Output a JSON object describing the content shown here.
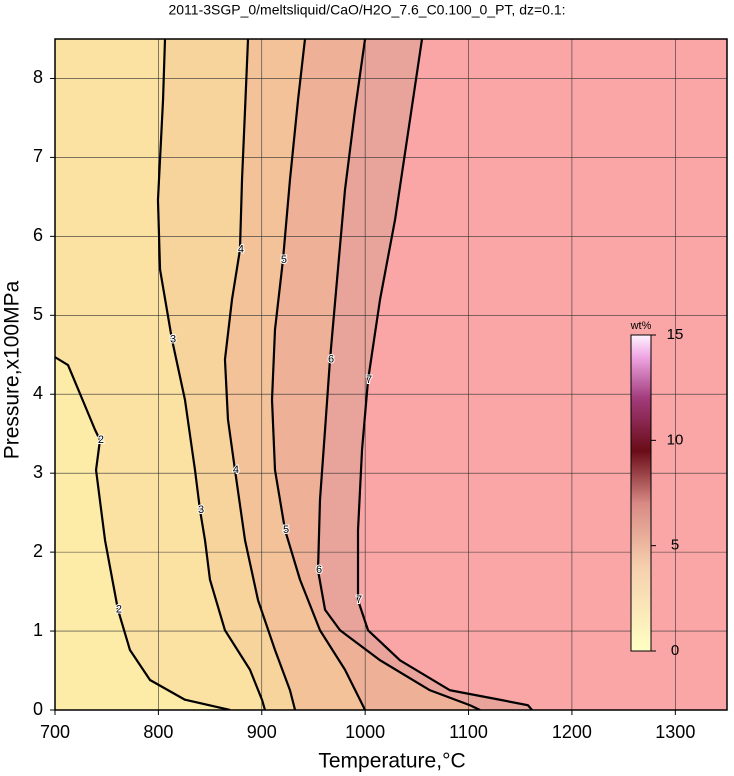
{
  "chart_data": {
    "type": "contour",
    "title": "2011-3SGP_0/meltsliquid/CaO/H2O_7.6_C0.100_0_PT, dz=0.1:",
    "x_label": "Temperature,°C",
    "y_label": "Pressure,x100MPa",
    "xlim": [
      700,
      1350
    ],
    "ylim": [
      0,
      8.5
    ],
    "xticks": [
      700,
      800,
      900,
      1000,
      1100,
      1200,
      1300
    ],
    "yticks": [
      0,
      1,
      2,
      3,
      4,
      5,
      6,
      7,
      8
    ],
    "grid": true,
    "contours": [
      {
        "level": 2,
        "x": [
          700,
          712.6,
          738.7,
          743.5,
          739.7,
          748.4,
          760.9,
          772.5,
          791.9,
          825.7,
          869.3
        ],
        "y": [
          4.47,
          4.37,
          3.55,
          3.42,
          3.04,
          2.15,
          1.27,
          0.76,
          0.38,
          0.13,
          0
        ],
        "fill": "#fdeba8"
      },
      {
        "level": 3,
        "x": [
          806.4,
          804.5,
          799.6,
          801.6,
          813.2,
          825.7,
          835.4,
          840.3,
          845.1,
          849.9,
          864.4,
          888.6,
          900.2,
          903.1
        ],
        "y": [
          8.5,
          7.73,
          6.46,
          5.58,
          4.69,
          3.93,
          3.04,
          2.53,
          2.15,
          1.65,
          1.01,
          0.51,
          0.13,
          0
        ],
        "fill": "#fbe2a3"
      },
      {
        "level": 4,
        "x": [
          886.7,
          883.8,
          880.9,
          878.9,
          871.2,
          864.4,
          867.3,
          874.1,
          883.8,
          896.4,
          912.8,
          927.3,
          932.2
        ],
        "y": [
          8.5,
          7.6,
          6.72,
          5.83,
          5.2,
          4.44,
          3.68,
          3.04,
          2.15,
          1.39,
          0.76,
          0.25,
          0
        ],
        "fill": "#f8d49d"
      },
      {
        "level": 5,
        "x": [
          941.8,
          935.1,
          927.3,
          920.5,
          912.8,
          909.9,
          912.8,
          922.5,
          937.0,
          956.3,
          980.5,
          995.0,
          999.9
        ],
        "y": [
          8.5,
          7.73,
          6.72,
          5.7,
          4.82,
          3.93,
          3.04,
          2.28,
          1.65,
          1.01,
          0.51,
          0.13,
          0
        ],
        "fill": "#f3c298"
      },
      {
        "level": 6,
        "x": [
          999.9,
          990.2,
          980.5,
          972.8,
          966.0,
          961.2,
          956.3,
          954.4,
          961.2,
          975.7,
          1014.4,
          1062.7,
          1101.4,
          1111.1
        ],
        "y": [
          8.5,
          7.6,
          6.59,
          5.45,
          4.44,
          3.55,
          2.66,
          1.77,
          1.27,
          1.01,
          0.63,
          0.25,
          0.06,
          0
        ],
        "fill": "#eeb197"
      },
      {
        "level": 7,
        "x": [
          1055.0,
          1043.4,
          1028.9,
          1014.4,
          1002.8,
          997.0,
          993.1,
          993.1,
          1002.8,
          1033.7,
          1082.1,
          1130.4,
          1157.5,
          1161.4
        ],
        "y": [
          8.5,
          7.48,
          6.21,
          5.2,
          4.18,
          3.3,
          2.28,
          1.39,
          1.01,
          0.63,
          0.25,
          0.13,
          0.06,
          0
        ],
        "fill": "#e8a39b"
      }
    ],
    "background_fill": "#fba6a6",
    "colorbar": {
      "label": "wt%",
      "lim": [
        0,
        15
      ],
      "ticks": [
        0,
        5,
        10,
        15
      ],
      "stops": [
        {
          "value": 0,
          "color": "#ffffc4"
        },
        {
          "value": 4,
          "color": "#f6cfae"
        },
        {
          "value": 7,
          "color": "#d88a84"
        },
        {
          "value": 9.5,
          "color": "#6a0c18"
        },
        {
          "value": 12,
          "color": "#a23c7c"
        },
        {
          "value": 14,
          "color": "#f0a8e4"
        },
        {
          "value": 15,
          "color": "#fff4ff"
        }
      ]
    }
  }
}
